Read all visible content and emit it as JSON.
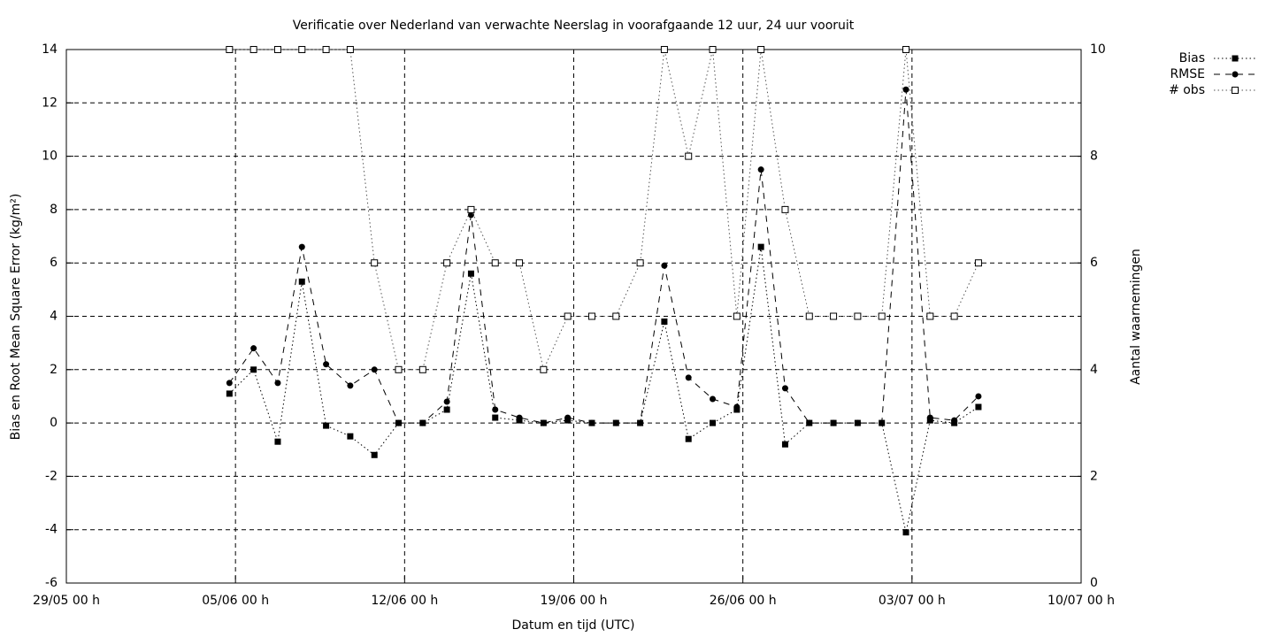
{
  "chart_data": {
    "type": "line",
    "title": "Verificatie over Nederland van verwachte Neerslag in voorafgaande 12 uur, 24 uur vooruit",
    "x_label": "Datum en tijd (UTC)",
    "y_label": "Bias en Root Mean Square Error (kg/m²)",
    "y2_label": "Aantal waarnemingen",
    "x": [
      6.75,
      7.75,
      8.75,
      9.75,
      10.75,
      11.75,
      12.75,
      13.75,
      14.75,
      15.75,
      16.75,
      17.75,
      18.75,
      19.75,
      20.75,
      21.75,
      22.75,
      23.75,
      24.75,
      25.75,
      26.75,
      27.75,
      28.75,
      29.75,
      30.75,
      31.75,
      32.75,
      33.75,
      34.75,
      35.75,
      36.75,
      37.75
    ],
    "series": [
      {
        "name": "Bias",
        "color": "#000000",
        "marker": "square",
        "line": "dotted",
        "values": [
          1.1,
          2.0,
          -0.7,
          5.3,
          -0.1,
          -0.5,
          -1.2,
          0,
          0,
          0.5,
          5.6,
          0.2,
          0.1,
          0,
          0.1,
          0,
          0,
          0,
          3.8,
          -0.6,
          0,
          0.5,
          6.6,
          -0.8,
          0,
          0,
          0,
          0,
          -4.1,
          0.1,
          0,
          0.6
        ]
      },
      {
        "name": "RMSE",
        "color": "#000000",
        "marker": "circle",
        "line": "dashed",
        "values": [
          1.5,
          2.8,
          1.5,
          6.6,
          2.2,
          1.4,
          2.0,
          0,
          0,
          0.8,
          7.8,
          0.5,
          0.2,
          0,
          0.2,
          0,
          0,
          0,
          5.9,
          1.7,
          0.9,
          0.6,
          9.5,
          1.3,
          0,
          0,
          0,
          0,
          12.5,
          0.2,
          0.1,
          1.0
        ]
      },
      {
        "name": "# obs",
        "color": "#000000",
        "marker": "open-square",
        "line": "dotted-light",
        "axis": "y2",
        "values": [
          10,
          10,
          10,
          10,
          10,
          10,
          6,
          4,
          4,
          6,
          7,
          6,
          6,
          4,
          5,
          5,
          5,
          6,
          10,
          8,
          10,
          5,
          10,
          7,
          5,
          5,
          5,
          5,
          10,
          5,
          5,
          6
        ]
      }
    ],
    "xlim": [
      0,
      42
    ],
    "xticks": [
      {
        "value": 0,
        "label": "29/05 00 h"
      },
      {
        "value": 7,
        "label": "05/06 00 h"
      },
      {
        "value": 14,
        "label": "12/06 00 h"
      },
      {
        "value": 21,
        "label": "19/06 00 h"
      },
      {
        "value": 28,
        "label": "26/06 00 h"
      },
      {
        "value": 35,
        "label": "03/07 00 h"
      },
      {
        "value": 42,
        "label": "10/07 00 h"
      }
    ],
    "ylim": [
      -6,
      14
    ],
    "yticks": [
      -6,
      -4,
      -2,
      0,
      2,
      4,
      6,
      8,
      10,
      12,
      14
    ],
    "y2lim": [
      0,
      10
    ],
    "y2ticks": [
      0,
      2,
      4,
      6,
      8,
      10
    ],
    "grid": true,
    "legend": "outside-top-right"
  }
}
